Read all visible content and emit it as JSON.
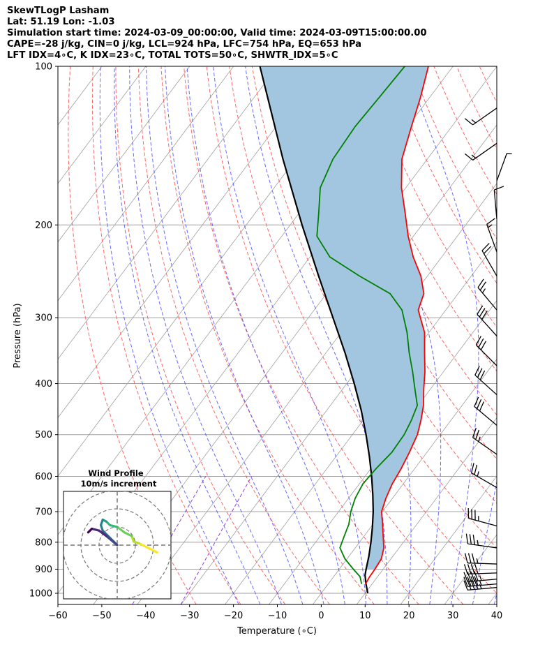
{
  "header": {
    "line1": "SkewTLogP Lasham",
    "line2": "Lat: 51.19   Lon: -1.03",
    "line3": "Simulation start time: 2024-03-09_00:00:00, Valid time: 2024-03-09T15:00:00.00",
    "line4": "CAPE=-28 j/kg, CIN=0 j/kg, LCL=924 hPa, LFC=754 hPa, EQ=653 hPa",
    "line5": "LFT IDX=4∘C, K IDX=23∘C, TOTAL TOTS=50∘C, SHWTR_IDX=5∘C"
  },
  "chart_data": [
    {
      "type": "line",
      "subtype": "skew-t log-p",
      "xlabel": "Temperature (∘C)",
      "ylabel": "Pressure (hPa)",
      "xlim": [
        -60,
        40
      ],
      "ylim": [
        1050,
        100
      ],
      "yscale": "log",
      "x_ticks": [
        -60,
        -50,
        -40,
        -30,
        -20,
        -10,
        0,
        10,
        20,
        30,
        40
      ],
      "y_ticks": [
        1000,
        900,
        800,
        700,
        600,
        500,
        400,
        300,
        200,
        100
      ],
      "grid": true,
      "colors": {
        "temperature": "#ff0000",
        "dewpoint": "#008000",
        "parcel": "#000000",
        "cape_shade": "#a3c6e0",
        "dry_adiabats": "#ff5555",
        "moist_adiabats": "#4444ff",
        "mixing_ratio": "#8a2be2",
        "isotherms": "#a0a0a0"
      },
      "series": [
        {
          "key": "temperature",
          "pressure": [
            960,
            930,
            900,
            860,
            820,
            780,
            740,
            700,
            660,
            620,
            580,
            540,
            500,
            470,
            440,
            410,
            380,
            350,
            320,
            290,
            270,
            250,
            230,
            210,
            190,
            170,
            150,
            130,
            115,
            100
          ],
          "temp": [
            8.5,
            8.2,
            8.1,
            7.8,
            6.5,
            4.4,
            2.2,
            -0.2,
            -1.5,
            -2.5,
            -3.1,
            -4.0,
            -5.2,
            -6.8,
            -8.8,
            -11.5,
            -14.2,
            -17.5,
            -21.0,
            -26.3,
            -27.8,
            -31.5,
            -36.5,
            -41.2,
            -45.8,
            -51.0,
            -55.8,
            -59.2,
            -62.0,
            -65.6
          ]
        },
        {
          "key": "dewpoint",
          "pressure": [
            960,
            930,
            900,
            860,
            820,
            780,
            740,
            700,
            660,
            620,
            580,
            540,
            500,
            470,
            440,
            410,
            380,
            350,
            320,
            290,
            270,
            250,
            230,
            210,
            190,
            170,
            150,
            130,
            115,
            100
          ],
          "temp": [
            7.6,
            6.0,
            3.2,
            -0.5,
            -3.5,
            -4.5,
            -5.5,
            -7.2,
            -8.5,
            -9.2,
            -8.8,
            -8.0,
            -8.2,
            -9.0,
            -10.2,
            -13.5,
            -17.0,
            -21.0,
            -25.0,
            -30.0,
            -35.5,
            -45.5,
            -55.5,
            -62.0,
            -65.5,
            -69.5,
            -71.5,
            -72.0,
            -71.5,
            -71.0
          ]
        },
        {
          "key": "parcel",
          "pressure": [
            1000,
            960,
            924,
            900,
            850,
            800,
            750,
            700,
            650,
            600,
            550,
            500,
            450,
            400,
            350,
            300,
            250,
            200,
            150,
            100
          ],
          "temp": [
            10.6,
            8.6,
            6.9,
            6.1,
            4.5,
            2.6,
            0.4,
            -2.1,
            -5.1,
            -8.5,
            -12.4,
            -16.9,
            -22.1,
            -28.3,
            -35.6,
            -44.4,
            -54.8,
            -67.3,
            -82.9,
            -104.0
          ]
        }
      ],
      "wind_barbs": [
        {
          "p": 975,
          "spd": 45,
          "dir": 265
        },
        {
          "p": 960,
          "spd": 45,
          "dir": 265
        },
        {
          "p": 940,
          "spd": 45,
          "dir": 265
        },
        {
          "p": 915,
          "spd": 40,
          "dir": 268
        },
        {
          "p": 880,
          "spd": 35,
          "dir": 272
        },
        {
          "p": 820,
          "spd": 35,
          "dir": 278
        },
        {
          "p": 745,
          "spd": 35,
          "dir": 285
        },
        {
          "p": 630,
          "spd": 25,
          "dir": 300
        },
        {
          "p": 545,
          "spd": 25,
          "dir": 305
        },
        {
          "p": 480,
          "spd": 30,
          "dir": 310
        },
        {
          "p": 420,
          "spd": 30,
          "dir": 312
        },
        {
          "p": 370,
          "spd": 30,
          "dir": 315
        },
        {
          "p": 325,
          "spd": 30,
          "dir": 318
        },
        {
          "p": 290,
          "spd": 25,
          "dir": 320
        },
        {
          "p": 250,
          "spd": 20,
          "dir": 330
        },
        {
          "p": 225,
          "spd": 15,
          "dir": 340
        },
        {
          "p": 195,
          "spd": 10,
          "dir": 355
        },
        {
          "p": 165,
          "spd": 5,
          "dir": 20
        },
        {
          "p": 140,
          "spd": 15,
          "dir": 235
        },
        {
          "p": 120,
          "spd": 15,
          "dir": 235
        }
      ]
    },
    {
      "type": "line",
      "subtype": "hodograph",
      "title": "Wind Profile",
      "subtitle": "10m/s increment",
      "ring_increment": 10,
      "colormap": "viridis",
      "u": [
        22,
        18,
        12,
        9,
        8,
        4,
        0,
        -4,
        -6,
        -8,
        -9,
        -8,
        -5,
        -2,
        0,
        -6,
        -10,
        -14,
        -16
      ],
      "v": [
        -4,
        -2,
        1,
        2,
        5,
        7,
        10,
        11,
        13,
        14,
        11,
        8,
        5,
        2,
        0,
        5,
        8,
        9,
        7
      ]
    }
  ]
}
